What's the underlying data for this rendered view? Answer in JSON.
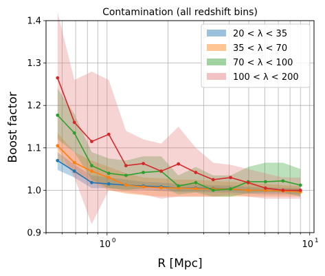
{
  "chart_data": {
    "type": "line",
    "title": "Contamination (all redshift bins)",
    "xlabel": "R [Mpc]",
    "ylabel": "Boost factor",
    "xscale": "log",
    "xlim": [
      0.5,
      10.5
    ],
    "ylim": [
      0.9,
      1.4
    ],
    "yticks": [
      "0.9",
      "1.0",
      "1.1",
      "1.2",
      "1.3",
      "1.4"
    ],
    "xticks": [
      {
        "value": 1,
        "base": "10",
        "exp": "0"
      },
      {
        "value": 10,
        "base": "10",
        "exp": "1"
      }
    ],
    "grid": true,
    "legend_position": "top-right",
    "x": [
      0.57,
      0.69,
      0.84,
      1.02,
      1.24,
      1.51,
      1.85,
      2.25,
      2.74,
      3.34,
      4.07,
      4.97,
      6.05,
      7.38,
      9.0
    ],
    "series": [
      {
        "name": "20 < λ < 35",
        "color": "#1f77b4",
        "band_color": "#1f77b4",
        "values": [
          1.07,
          1.045,
          1.018,
          1.015,
          1.012,
          1.01,
          1.008,
          1.005,
          1.005,
          1.004,
          1.003,
          1.0,
          1.0,
          0.998,
          0.997
        ],
        "lower": [
          1.048,
          1.03,
          1.005,
          1.005,
          1.002,
          1.001,
          0.998,
          0.996,
          0.996,
          0.995,
          0.995,
          0.992,
          0.99,
          0.99,
          0.99
        ],
        "upper": [
          1.09,
          1.06,
          1.035,
          1.03,
          1.025,
          1.02,
          1.018,
          1.015,
          1.014,
          1.012,
          1.011,
          1.008,
          1.007,
          1.006,
          1.005
        ]
      },
      {
        "name": "35 < λ < 70",
        "color": "#ff7f0e",
        "band_color": "#ff7f0e",
        "values": [
          1.105,
          1.065,
          1.045,
          1.03,
          1.012,
          1.008,
          1.006,
          1.005,
          1.004,
          1.003,
          1.003,
          1.0,
          1.0,
          0.998,
          0.996
        ],
        "lower": [
          1.075,
          1.04,
          1.02,
          1.0,
          0.992,
          0.988,
          0.985,
          0.985,
          0.985,
          0.985,
          0.985,
          0.985,
          0.985,
          0.985,
          0.985
        ],
        "upper": [
          1.135,
          1.09,
          1.07,
          1.055,
          1.04,
          1.03,
          1.028,
          1.025,
          1.025,
          1.022,
          1.02,
          1.018,
          1.015,
          1.012,
          1.01
        ]
      },
      {
        "name": "70 < λ < 100",
        "color": "#2ca02c",
        "band_color": "#2ca02c",
        "values": [
          1.177,
          1.135,
          1.058,
          1.04,
          1.035,
          1.042,
          1.045,
          1.01,
          1.018,
          1.0,
          1.003,
          1.02,
          1.02,
          1.022,
          1.012
        ],
        "lower": [
          1.12,
          1.09,
          1.025,
          1.005,
          1.0,
          1.005,
          1.01,
          0.99,
          0.995,
          0.985,
          0.985,
          0.993,
          0.995,
          0.995,
          0.985
        ],
        "upper": [
          1.24,
          1.18,
          1.09,
          1.075,
          1.07,
          1.08,
          1.08,
          1.035,
          1.055,
          1.035,
          1.035,
          1.055,
          1.065,
          1.065,
          1.05
        ]
      },
      {
        "name": "100 < λ < 200",
        "color": "#d62728",
        "band_color": "#e3787a",
        "values": [
          1.265,
          1.16,
          1.115,
          1.132,
          1.058,
          1.063,
          1.045,
          1.062,
          1.042,
          1.025,
          1.03,
          1.018,
          1.005,
          1.0,
          1.0
        ],
        "lower": [
          1.1,
          1.03,
          0.92,
          1.0,
          0.995,
          0.99,
          0.98,
          0.985,
          0.985,
          0.985,
          0.99,
          0.985,
          0.98,
          0.98,
          0.98
        ],
        "upper": [
          1.42,
          1.26,
          1.28,
          1.26,
          1.14,
          1.12,
          1.11,
          1.15,
          1.1,
          1.065,
          1.06,
          1.05,
          1.04,
          1.03,
          1.03
        ]
      }
    ]
  }
}
